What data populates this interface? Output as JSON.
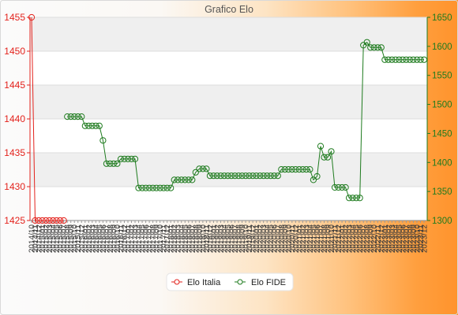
{
  "chart_data": {
    "type": "line",
    "title": "Grafico Elo",
    "grid": true,
    "legend_position": "bottom",
    "categories": [
      "2014/10",
      "2014/11",
      "2014/12",
      "2015/01",
      "2015/02",
      "2015/03",
      "2015/04",
      "2015/05",
      "2015/06",
      "2015/07",
      "2015/08",
      "2015/09",
      "2015/10",
      "2015/11",
      "2015/12",
      "2016/01",
      "2016/02",
      "2016/03",
      "2016/04",
      "2016/05",
      "2016/06",
      "2016/07",
      "2016/08",
      "2016/09",
      "2016/10",
      "2016/11",
      "2016/12",
      "2017/01",
      "2017/02",
      "2017/03",
      "2017/04",
      "2017/05",
      "2017/06",
      "2017/07",
      "2017/08",
      "2017/09",
      "2017/10",
      "2017/11",
      "2017/12",
      "2018/01",
      "2018/02",
      "2018/03",
      "2018/04",
      "2018/05",
      "2018/06",
      "2018/07",
      "2018/08",
      "2018/09",
      "2018/10",
      "2018/11",
      "2018/12",
      "2019/01",
      "2019/02",
      "2019/03",
      "2019/04",
      "2019/05",
      "2019/06",
      "2019/07",
      "2019/08",
      "2019/09",
      "2019/10",
      "2019/11",
      "2019/12",
      "2020/01",
      "2020/02",
      "2020/03",
      "2020/04",
      "2020/05",
      "2020/06",
      "2020/07",
      "2020/08",
      "2020/09",
      "2020/10",
      "2020/11",
      "2020/12",
      "2021/01",
      "2021/02",
      "2021/03",
      "2021/04",
      "2021/05",
      "2021/06",
      "2021/07",
      "2021/08",
      "2021/09",
      "2021/10",
      "2021/11",
      "2021/12",
      "2022/01",
      "2022/02",
      "2022/03",
      "2022/04",
      "2022/05",
      "2022/06",
      "2022/07",
      "2022/08",
      "2022/09",
      "2022/10",
      "2022/11",
      "2022/12",
      "2023/01",
      "2023/02",
      "2023/03",
      "2023/04",
      "2023/05",
      "2023/06",
      "2023/07",
      "2023/08",
      "2023/09",
      "2023/10",
      "2023/11",
      "2023/12"
    ],
    "y_left": {
      "ylim": [
        1425,
        1455
      ],
      "ticks": [
        1425,
        1430,
        1435,
        1440,
        1445,
        1450,
        1455
      ],
      "color": "#e3221c"
    },
    "y_right": {
      "ylim": [
        1300,
        1650
      ],
      "ticks": [
        1300,
        1350,
        1400,
        1450,
        1500,
        1550,
        1600,
        1650
      ],
      "color": "#1e7b1e"
    },
    "series": [
      {
        "name": "Elo Italia",
        "axis": "left",
        "color": "#e3221c",
        "values": [
          1455,
          1425,
          1425,
          1425,
          1425,
          1425,
          1425,
          1425,
          1425,
          1425,
          null,
          null,
          null,
          null,
          null,
          null,
          null,
          null,
          null,
          null,
          null,
          null,
          null,
          null,
          null,
          null,
          null,
          null,
          null,
          null,
          null,
          null,
          null,
          null,
          null,
          null,
          null,
          null,
          null,
          null,
          null,
          null,
          null,
          null,
          null,
          null,
          null,
          null,
          null,
          null,
          null,
          null,
          null,
          null,
          null,
          null,
          null,
          null,
          null,
          null,
          null,
          null,
          null,
          null,
          null,
          null,
          null,
          null,
          null,
          null,
          null,
          null,
          null,
          null,
          null,
          null,
          null,
          null,
          null,
          null,
          null,
          null,
          null,
          null,
          null,
          null,
          null,
          null,
          null,
          null,
          null,
          null,
          null,
          null,
          null,
          null,
          null,
          null,
          null,
          null,
          null,
          null,
          null,
          null,
          null,
          null,
          null,
          null,
          null,
          null,
          null
        ]
      },
      {
        "name": "Elo FIDE",
        "axis": "right",
        "color": "#1e7b1e",
        "values": [
          null,
          null,
          null,
          null,
          null,
          null,
          null,
          null,
          null,
          null,
          1479,
          1479,
          1479,
          1479,
          1479,
          1463,
          1463,
          1463,
          1463,
          1463,
          1438,
          1398,
          1398,
          1398,
          1398,
          1406,
          1406,
          1406,
          1406,
          1406,
          1356,
          1356,
          1356,
          1356,
          1356,
          1356,
          1356,
          1356,
          1356,
          1356,
          1370,
          1370,
          1370,
          1370,
          1370,
          1370,
          1383,
          1389,
          1389,
          1389,
          1377,
          1377,
          1377,
          1377,
          1377,
          1377,
          1377,
          1377,
          1377,
          1377,
          1377,
          1377,
          1377,
          1377,
          1377,
          1377,
          1377,
          1377,
          1377,
          1377,
          1388,
          1388,
          1388,
          1388,
          1388,
          1388,
          1388,
          1388,
          1388,
          1370,
          1376,
          1428,
          1409,
          1409,
          1419,
          1357,
          1357,
          1357,
          1357,
          1339,
          1339,
          1339,
          1339,
          1602,
          1607,
          1598,
          1598,
          1598,
          1598,
          1577,
          1577,
          1577,
          1577,
          1577,
          1577,
          1577,
          1577,
          1577,
          1577,
          1577,
          1577
        ]
      }
    ]
  }
}
